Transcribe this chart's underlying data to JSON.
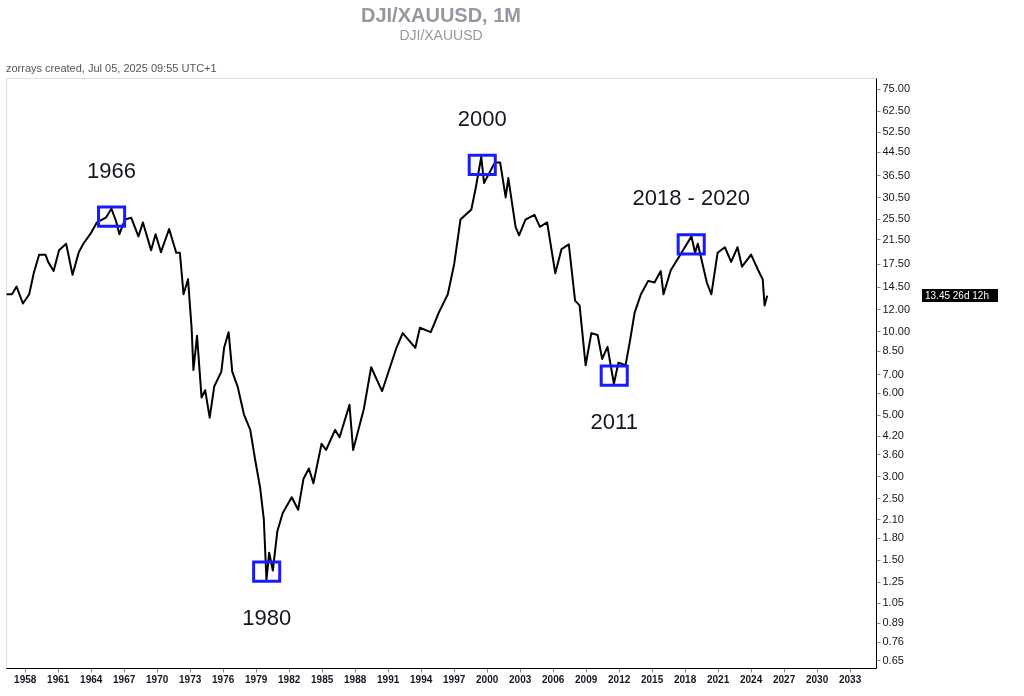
{
  "chart_data": {
    "type": "line",
    "title": "DJI/XAUUSD, 1M",
    "subtitle": "DJI/XAUUSD",
    "x": [
      1956.36,
      1956.85,
      1957.26,
      1957.84,
      1958.41,
      1958.82,
      1959.31,
      1959.89,
      1960.13,
      1960.63,
      1961.12,
      1961.77,
      1962.35,
      1962.92,
      1963.33,
      1963.99,
      1964.56,
      1965.38,
      1965.88,
      1966.29,
      1966.61,
      1967.11,
      1967.68,
      1968.34,
      1968.75,
      1969.49,
      1969.9,
      1970.39,
      1971.13,
      1971.78,
      1972.11,
      1972.44,
      1972.85,
      1973.18,
      1973.34,
      1973.67,
      1974.08,
      1974.41,
      1974.82,
      1975.23,
      1975.88,
      1976.13,
      1976.54,
      1976.87,
      1977.36,
      1977.93,
      1978.51,
      1978.92,
      1979.41,
      1979.74,
      1979.98,
      1980.23,
      1980.56,
      1980.97,
      1981.46,
      1982.28,
      1982.86,
      1983.35,
      1983.84,
      1984.25,
      1984.99,
      1985.4,
      1986.22,
      1986.63,
      1987.53,
      1987.86,
      1988.84,
      1989.5,
      1990.49,
      1991.8,
      1992.37,
      1993.52,
      1993.93,
      1994.92,
      1995.66,
      1996.47,
      1997.05,
      1997.62,
      1998.61,
      1999.02,
      1999.51,
      1999.76,
      2000.74,
      2001.23,
      2001.73,
      2001.97,
      2002.63,
      2002.95,
      2003.53,
      2004.35,
      2004.84,
      2005.5,
      2006.24,
      2006.81,
      2007.47,
      2008.04,
      2008.45,
      2009.0,
      2009.52,
      2010.09,
      2010.5,
      2010.99,
      2011.57,
      2011.98,
      2012.63,
      2013.04,
      2013.46,
      2014.03,
      2014.69,
      2015.26,
      2015.83,
      2016.08,
      2016.74,
      2017.72,
      2018.62,
      2018.95,
      2019.2,
      2020.02,
      2020.43,
      2021.0,
      2021.66,
      2022.23,
      2022.81,
      2023.22,
      2024.04,
      2024.69,
      2025.1,
      2025.27,
      2025.51
    ],
    "series": [
      {
        "color": "#000000",
        "values": [
          13.6,
          13.6,
          14.5,
          12.6,
          13.6,
          16.2,
          18.9,
          18.9,
          17.8,
          16.5,
          19.6,
          20.7,
          16.0,
          19.3,
          20.7,
          22.5,
          24.7,
          25.7,
          27.7,
          25.1,
          22.4,
          25.3,
          25.7,
          22.0,
          24.7,
          19.6,
          22.4,
          19.3,
          23.4,
          19.2,
          19.2,
          13.6,
          15.4,
          10.2,
          7.25,
          9.63,
          5.77,
          6.13,
          4.88,
          6.32,
          7.15,
          8.72,
          9.93,
          7.15,
          6.32,
          5.02,
          4.41,
          3.5,
          2.72,
          2.1,
          1.27,
          1.59,
          1.37,
          1.9,
          2.21,
          2.52,
          2.27,
          2.94,
          3.2,
          2.83,
          3.93,
          3.73,
          4.41,
          4.15,
          5.43,
          3.73,
          5.26,
          7.42,
          6.08,
          8.72,
          9.85,
          8.72,
          10.3,
          9.93,
          11.7,
          13.6,
          17.5,
          25.3,
          27.5,
          33.1,
          42.6,
          34.3,
          40.6,
          40.6,
          30.4,
          35.7,
          23.8,
          22.2,
          25.3,
          26.3,
          23.8,
          24.7,
          16.2,
          19.8,
          20.6,
          12.9,
          12.4,
          7.54,
          9.85,
          9.7,
          7.95,
          8.79,
          6.47,
          7.71,
          7.54,
          9.27,
          11.7,
          13.6,
          15.2,
          15.0,
          16.5,
          13.6,
          16.6,
          19.2,
          22.0,
          19.2,
          20.7,
          15.0,
          13.6,
          19.2,
          20.1,
          17.8,
          20.1,
          17.1,
          18.9,
          16.6,
          15.4,
          12.4,
          13.45
        ]
      }
    ],
    "xlim": [
      1956.3,
      2035.4
    ],
    "xticks": [
      1958,
      1961,
      1964,
      1967,
      1970,
      1973,
      1976,
      1979,
      1982,
      1985,
      1988,
      1991,
      1994,
      1997,
      2000,
      2003,
      2006,
      2009,
      2012,
      2015,
      2018,
      2021,
      2024,
      2027,
      2030,
      2033
    ],
    "log": true,
    "ylim": [
      0.61,
      82
    ],
    "yticks": [
      {
        "value": 0.65,
        "label": "0.65"
      },
      {
        "value": 0.76,
        "label": "0.76"
      },
      {
        "value": 0.89,
        "label": "0.89"
      },
      {
        "value": 1.05,
        "label": "1.05"
      },
      {
        "value": 1.25,
        "label": "1.25"
      },
      {
        "value": 1.5,
        "label": "1.50"
      },
      {
        "value": 1.8,
        "label": "1.80"
      },
      {
        "value": 2.1,
        "label": "2.10"
      },
      {
        "value": 2.5,
        "label": "2.50"
      },
      {
        "value": 3,
        "label": "3.00"
      },
      {
        "value": 3.6,
        "label": "3.60"
      },
      {
        "value": 4.2,
        "label": "4.20"
      },
      {
        "value": 5,
        "label": "5.00"
      },
      {
        "value": 6,
        "label": "6.00"
      },
      {
        "value": 7,
        "label": "7.00"
      },
      {
        "value": 8.5,
        "label": "8.50"
      },
      {
        "value": 10,
        "label": "10.00"
      },
      {
        "value": 12,
        "label": "12.00"
      },
      {
        "value": 14.5,
        "label": "14.50"
      },
      {
        "value": 17.5,
        "label": "17.50"
      },
      {
        "value": 21.5,
        "label": "21.50"
      },
      {
        "value": 25.5,
        "label": "25.50"
      },
      {
        "value": 30.5,
        "label": "30.50"
      },
      {
        "value": 36.5,
        "label": "36.50"
      },
      {
        "value": 44.5,
        "label": "44.50"
      },
      {
        "value": 52.5,
        "label": "52.50"
      },
      {
        "value": 62.5,
        "label": "62.50"
      },
      {
        "value": 75,
        "label": "75.00"
      }
    ],
    "annotations": [
      "zorrays created, Jul 05, 2025 09:55 UTC+1",
      "13.45 26d 12h",
      {
        "text": "1966",
        "x": 1965.9,
        "y": 27.7
      },
      {
        "text": "1980",
        "x": 1980.0,
        "y": 1.27
      },
      {
        "text": "2000",
        "x": 1999.6,
        "y": 42.6
      },
      {
        "text": "2011",
        "x": 2011.6,
        "y": 6.47
      },
      {
        "text": "2018 - 2020",
        "x": 2018.6,
        "y": 22.0
      }
    ],
    "grid": false,
    "marker": "none",
    "line_style": "solid"
  }
}
